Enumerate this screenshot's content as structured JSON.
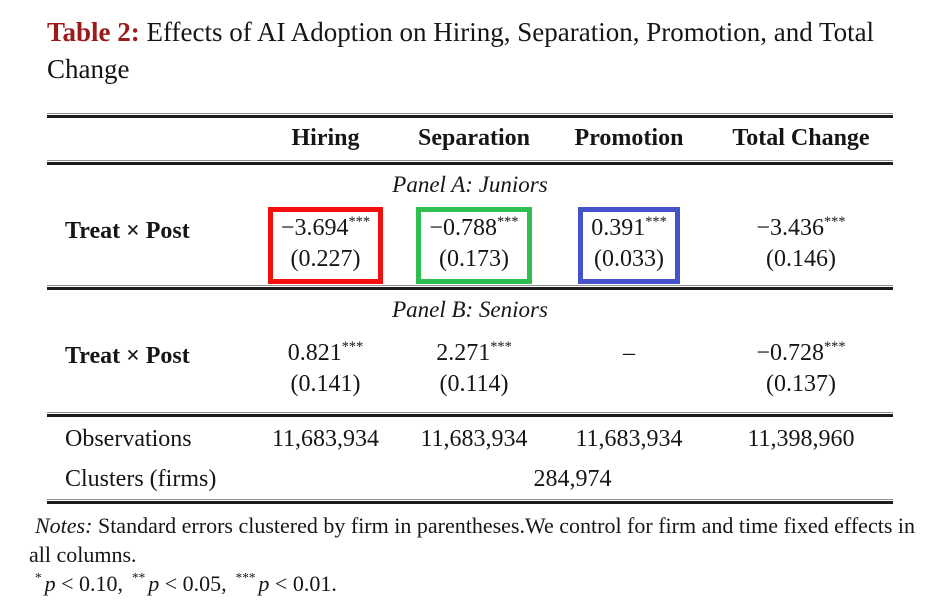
{
  "caption": {
    "label": "Table 2:",
    "text": "Effects of AI Adoption on Hiring, Separation, Promotion, and Total Change"
  },
  "colors": {
    "caption_label": "#9d1a1b",
    "highlight_red": "#f40f0f",
    "highlight_green": "#2ebf50",
    "highlight_blue": "#4652c9"
  },
  "table": {
    "column_headers": [
      "Hiring",
      "Separation",
      "Promotion",
      "Total Change"
    ],
    "panels": [
      {
        "title": "Panel A: Juniors",
        "row_label": "Treat × Post",
        "cells": [
          {
            "estimate": "−3.694",
            "stars": "***",
            "se": "(0.227)",
            "highlight": "red"
          },
          {
            "estimate": "−0.788",
            "stars": "***",
            "se": "(0.173)",
            "highlight": "green"
          },
          {
            "estimate": "0.391",
            "stars": "***",
            "se": "(0.033)",
            "highlight": "blue"
          },
          {
            "estimate": "−3.436",
            "stars": "***",
            "se": "(0.146)",
            "highlight": "none"
          }
        ]
      },
      {
        "title": "Panel B: Seniors",
        "row_label": "Treat × Post",
        "cells": [
          {
            "estimate": "0.821",
            "stars": "***",
            "se": "(0.141)",
            "highlight": "none"
          },
          {
            "estimate": "2.271",
            "stars": "***",
            "se": "(0.114)",
            "highlight": "none"
          },
          {
            "estimate": "–",
            "stars": "",
            "se": "",
            "highlight": "none"
          },
          {
            "estimate": "−0.728",
            "stars": "***",
            "se": "(0.137)",
            "highlight": "none"
          }
        ]
      }
    ],
    "observations": {
      "label": "Observations",
      "values": [
        "11,683,934",
        "11,683,934",
        "11,683,934",
        "11,398,960"
      ]
    },
    "clusters": {
      "label": "Clusters (firms)",
      "value": "284,974"
    }
  },
  "notes": {
    "label": "Notes:",
    "body": " Standard errors clustered by firm in parentheses.We control for firm and time fixed effects in all columns.",
    "significance": [
      {
        "stars": "*",
        "p": "p",
        "rest": " < 0.10,"
      },
      {
        "stars": "**",
        "p": "p",
        "rest": " < 0.05,"
      },
      {
        "stars": "***",
        "p": "p",
        "rest": " < 0.01."
      }
    ]
  }
}
